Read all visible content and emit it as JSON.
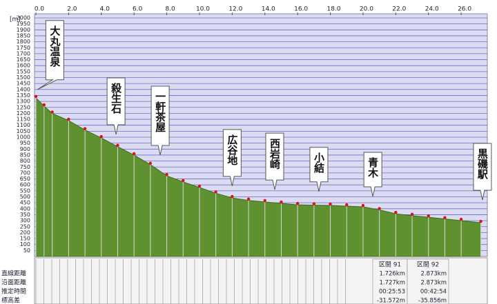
{
  "chart_data": {
    "type": "area",
    "y_axis_unit": "[m]",
    "x": [
      0,
      0.5,
      1,
      2,
      3,
      4,
      5,
      6,
      7,
      8,
      9,
      10,
      11,
      12,
      13,
      14,
      15,
      16,
      17,
      18,
      19,
      20,
      21,
      22,
      23,
      24,
      25,
      26,
      27.2
    ],
    "series": [
      {
        "color": "#5f9130",
        "values": [
          1330,
          1260,
          1200,
          1139,
          1060,
          994,
          920,
          850,
          770,
          676,
          625,
          578,
          530,
          491,
          470,
          457,
          445,
          433,
          430,
          428,
          422,
          416,
          390,
          358,
          342,
          329,
          314,
          300,
          283
        ]
      }
    ],
    "xlim": [
      0,
      27.43
    ],
    "ylim": [
      0,
      2000
    ],
    "xticks": [
      {
        "value": 0,
        "label": "0.0"
      },
      {
        "value": 2,
        "label": "2.0"
      },
      {
        "value": 4,
        "label": "4.0"
      },
      {
        "value": 6,
        "label": "6.0"
      },
      {
        "value": 8,
        "label": "8.0"
      },
      {
        "value": 10,
        "label": "10.0"
      },
      {
        "value": 12,
        "label": "12.0"
      },
      {
        "value": 14,
        "label": "14.0"
      },
      {
        "value": 16,
        "label": "16.0"
      },
      {
        "value": 18,
        "label": "18.0"
      },
      {
        "value": 20,
        "label": "20.0"
      },
      {
        "value": 22,
        "label": "22.0"
      },
      {
        "value": 24,
        "label": "24.0"
      },
      {
        "value": 26,
        "label": "26.0"
      }
    ],
    "yticks": [
      50,
      100,
      150,
      200,
      250,
      300,
      350,
      400,
      450,
      500,
      550,
      600,
      650,
      700,
      750,
      800,
      850,
      900,
      950,
      1000,
      1050,
      1100,
      1150,
      1200,
      1250,
      1300,
      1350,
      1400,
      1450,
      1500,
      1550,
      1600,
      1650,
      1700,
      1750,
      1800,
      1850,
      1900,
      1950,
      2000
    ],
    "grid": true,
    "annotations": [
      {
        "text": "大丸温泉",
        "x": 0.1,
        "y": 1400
      },
      {
        "text": "殺生石",
        "x": 4.9,
        "y": 1023
      },
      {
        "text": "一軒茶屋",
        "x": 7.6,
        "y": 850
      },
      {
        "text": "広谷地",
        "x": 12.0,
        "y": 590
      },
      {
        "text": "西岩崎",
        "x": 14.6,
        "y": 560
      },
      {
        "text": "小結",
        "x": 17.3,
        "y": 545
      },
      {
        "text": "青木",
        "x": 20.6,
        "y": 503
      },
      {
        "text": "黒磯駅",
        "x": 27.3,
        "y": 474
      }
    ]
  },
  "segment_table": {
    "row_labels": [
      "直線距離",
      "沿面距離",
      "推定時間",
      "標高差"
    ],
    "columns": [
      {
        "header": "区間 91",
        "cells": [
          "1.726km",
          "1.727km",
          "00:25:53",
          "-31.572m"
        ]
      },
      {
        "header": "区間 92",
        "cells": [
          "2.873km",
          "2.873km",
          "00:42:54",
          "-35.856m"
        ]
      }
    ]
  }
}
